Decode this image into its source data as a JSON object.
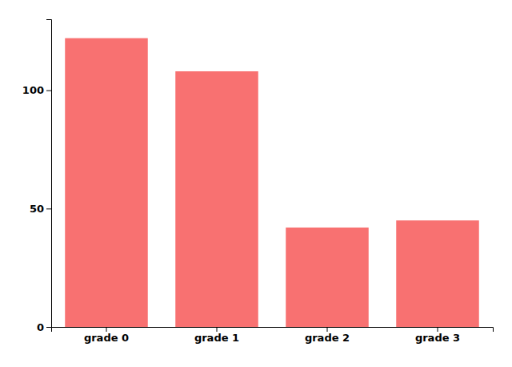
{
  "chart_data": {
    "type": "bar",
    "categories": [
      "grade 0",
      "grade 1",
      "grade 2",
      "grade 3"
    ],
    "values": [
      122,
      108,
      42,
      45
    ],
    "color": "#F87171",
    "ylim": [
      0,
      130
    ],
    "yticks": [
      0,
      50,
      100
    ],
    "grid": false
  }
}
